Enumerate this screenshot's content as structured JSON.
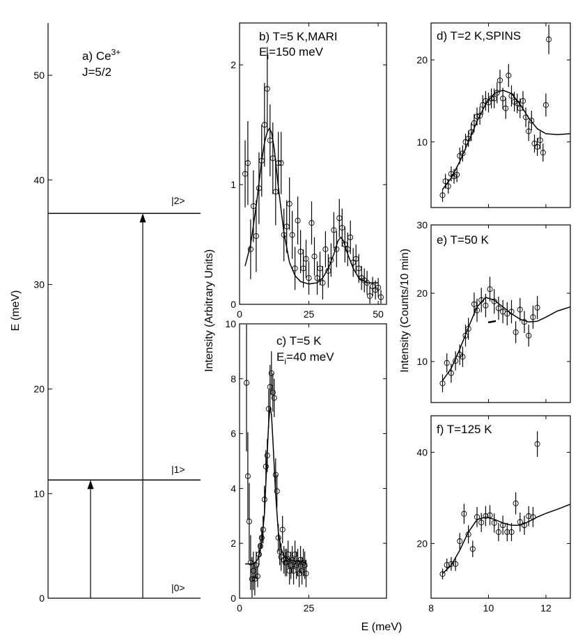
{
  "chart_data": [
    {
      "id": "a",
      "type": "level-diagram",
      "label": "a)",
      "ion": "Ce",
      "ion_sup": "3+",
      "j_label": "J=5/2",
      "ylabel": "E (meV)",
      "ylim": [
        0,
        55
      ],
      "yticks": [
        0,
        10,
        20,
        30,
        40,
        50
      ],
      "levels": [
        {
          "name": "|0>",
          "energy": 0
        },
        {
          "name": "|1>",
          "energy": 11.3
        },
        {
          "name": "|2>",
          "energy": 36.8
        }
      ],
      "transitions": [
        {
          "from": 0,
          "to": 11.3
        },
        {
          "from": 0,
          "to": 36.8
        }
      ]
    },
    {
      "id": "b",
      "type": "scatter",
      "title_pre": "b) T=5 K,MARI",
      "title_line2_pre": "E",
      "title_line2_sub": "i",
      "title_line2_post": "=150 meV",
      "xlim": [
        0,
        53
      ],
      "ylim": [
        0,
        2.35
      ],
      "xticks": [
        0,
        25,
        50
      ],
      "yticks": [
        0,
        1,
        2
      ],
      "points": [
        [
          2,
          1.09,
          0.28
        ],
        [
          3,
          1.18,
          0.35
        ],
        [
          4,
          0.46,
          0.25
        ],
        [
          5,
          0.82,
          0.3
        ],
        [
          6,
          0.57,
          0.3
        ],
        [
          7,
          0.97,
          0.3
        ],
        [
          8,
          1.2,
          0.3
        ],
        [
          9,
          1.5,
          0.35
        ],
        [
          10,
          1.8,
          0.35
        ],
        [
          11,
          1.37,
          0.3
        ],
        [
          12,
          1.22,
          0.3
        ],
        [
          13,
          0.94,
          0.28
        ],
        [
          14,
          1.18,
          0.26
        ],
        [
          15,
          1.18,
          0.26
        ],
        [
          16,
          0.58,
          0.22
        ],
        [
          17,
          0.65,
          0.22
        ],
        [
          18,
          0.84,
          0.22
        ],
        [
          19,
          0.58,
          0.2
        ],
        [
          20,
          0.3,
          0.18
        ],
        [
          21,
          0.7,
          0.2
        ],
        [
          22,
          0.44,
          0.18
        ],
        [
          23,
          0.3,
          0.16
        ],
        [
          24,
          0.38,
          0.16
        ],
        [
          25,
          0.22,
          0.14
        ],
        [
          26,
          0.68,
          0.18
        ],
        [
          27,
          0.4,
          0.16
        ],
        [
          28,
          0.22,
          0.14
        ],
        [
          29,
          0.3,
          0.14
        ],
        [
          30,
          0.18,
          0.14
        ],
        [
          31,
          0.46,
          0.15
        ],
        [
          32,
          0.28,
          0.14
        ],
        [
          33,
          0.37,
          0.14
        ],
        [
          34,
          0.62,
          0.15
        ],
        [
          35,
          0.46,
          0.15
        ],
        [
          36,
          0.72,
          0.16
        ],
        [
          37,
          0.64,
          0.16
        ],
        [
          38,
          0.5,
          0.15
        ],
        [
          39,
          0.46,
          0.14
        ],
        [
          40,
          0.56,
          0.14
        ],
        [
          41,
          0.35,
          0.12
        ],
        [
          42,
          0.38,
          0.12
        ],
        [
          43,
          0.3,
          0.12
        ],
        [
          44,
          0.22,
          0.1
        ],
        [
          45,
          0.2,
          0.1
        ],
        [
          46,
          0.18,
          0.1
        ],
        [
          47,
          0.07,
          0.08
        ],
        [
          48,
          0.15,
          0.08
        ],
        [
          49,
          0.12,
          0.08
        ],
        [
          50,
          0.14,
          0.08
        ],
        [
          51,
          0.06,
          0.06
        ]
      ],
      "fit": [
        [
          2,
          0.32
        ],
        [
          4,
          0.5
        ],
        [
          6,
          0.82
        ],
        [
          8,
          1.2
        ],
        [
          9,
          1.35
        ],
        [
          10,
          1.44
        ],
        [
          10.8,
          1.47
        ],
        [
          11.6,
          1.43
        ],
        [
          12.5,
          1.3
        ],
        [
          14,
          0.98
        ],
        [
          16,
          0.6
        ],
        [
          18,
          0.35
        ],
        [
          20,
          0.24
        ],
        [
          22,
          0.19
        ],
        [
          25,
          0.17
        ],
        [
          28,
          0.18
        ],
        [
          30,
          0.22
        ],
        [
          32,
          0.3
        ],
        [
          34,
          0.42
        ],
        [
          35.5,
          0.53
        ],
        [
          36.5,
          0.56
        ],
        [
          37.5,
          0.53
        ],
        [
          39,
          0.42
        ],
        [
          41,
          0.3
        ],
        [
          43,
          0.22
        ],
        [
          46,
          0.18
        ],
        [
          50,
          0.18
        ]
      ]
    },
    {
      "id": "c",
      "type": "scatter",
      "title_pre": "c) T=5 K",
      "title_line2_pre": "E",
      "title_line2_sub": "i",
      "title_line2_post": "=40 meV",
      "ylabel": "Intensity (Arbitrary Units)",
      "xlim": [
        0,
        53
      ],
      "ylim": [
        0,
        10
      ],
      "xticks": [
        0,
        25
      ],
      "yticks": [
        0,
        2,
        4,
        6,
        8,
        10
      ],
      "points": [
        [
          2.5,
          7.85,
          2.5
        ],
        [
          3,
          4.45,
          1.6
        ],
        [
          3.5,
          2.8,
          1.4
        ],
        [
          4,
          1.3,
          1.0
        ],
        [
          4.5,
          0.7,
          0.8
        ],
        [
          5,
          1.0,
          0.7
        ],
        [
          5.5,
          0.7,
          0.6
        ],
        [
          6,
          1.2,
          0.5
        ],
        [
          6.5,
          0.8,
          0.4
        ],
        [
          7,
          1.6,
          0.4
        ],
        [
          7.5,
          1.9,
          0.4
        ],
        [
          8,
          2.2,
          0.4
        ],
        [
          8.5,
          2.5,
          0.5
        ],
        [
          9,
          3.6,
          0.5
        ],
        [
          9.5,
          4.8,
          0.6
        ],
        [
          10,
          5.2,
          0.6
        ],
        [
          10.5,
          6.9,
          0.7
        ],
        [
          11,
          7.7,
          0.8
        ],
        [
          11.5,
          8.2,
          0.8
        ],
        [
          12,
          7.5,
          0.7
        ],
        [
          12.5,
          7.3,
          0.7
        ],
        [
          13,
          4.5,
          0.6
        ],
        [
          13.5,
          3.9,
          0.6
        ],
        [
          14,
          2.2,
          0.5
        ],
        [
          14.5,
          1.7,
          0.5
        ],
        [
          15,
          1.5,
          0.5
        ],
        [
          15.5,
          2.5,
          0.5
        ],
        [
          16,
          1.4,
          0.5
        ],
        [
          16.5,
          1.3,
          0.5
        ],
        [
          17,
          1.3,
          0.5
        ],
        [
          17.5,
          1.6,
          0.5
        ],
        [
          18,
          1.0,
          0.5
        ],
        [
          18.5,
          1.2,
          0.5
        ],
        [
          19,
          1.4,
          0.5
        ],
        [
          19.5,
          1.0,
          0.5
        ],
        [
          20,
          1.6,
          0.5
        ],
        [
          20.5,
          1.2,
          0.5
        ],
        [
          21,
          1.3,
          0.5
        ],
        [
          21.5,
          0.9,
          0.5
        ],
        [
          22,
          1.4,
          0.5
        ],
        [
          22.5,
          1.0,
          0.5
        ],
        [
          23,
          1.3,
          0.5
        ],
        [
          23.5,
          1.2,
          0.5
        ],
        [
          24,
          0.9,
          0.5
        ]
      ],
      "fit": [
        [
          2,
          1.25
        ],
        [
          5,
          1.25
        ],
        [
          6.5,
          1.4
        ],
        [
          8,
          2.0
        ],
        [
          9,
          3.1
        ],
        [
          10,
          5.3
        ],
        [
          10.5,
          6.4
        ],
        [
          11,
          6.95
        ],
        [
          11.5,
          6.7
        ],
        [
          12,
          5.8
        ],
        [
          13,
          3.8
        ],
        [
          14,
          2.4
        ],
        [
          15,
          1.8
        ],
        [
          16,
          1.55
        ],
        [
          18,
          1.4
        ],
        [
          20,
          1.35
        ],
        [
          24,
          1.3
        ]
      ]
    },
    {
      "id": "d",
      "type": "scatter",
      "title_pre": "d) T=2 K,SPINS",
      "xlim": [
        8,
        12.85
      ],
      "ylim": [
        2,
        24.5
      ],
      "yticks": [
        10,
        20
      ],
      "points": [
        [
          8.4,
          3.5,
          0.8
        ],
        [
          8.5,
          5.2,
          0.9
        ],
        [
          8.6,
          4.6,
          0.9
        ],
        [
          8.7,
          6.1,
          0.9
        ],
        [
          8.8,
          5.8,
          0.9
        ],
        [
          8.9,
          6.0,
          0.9
        ],
        [
          9.0,
          8.3,
          1.0
        ],
        [
          9.1,
          8.6,
          1.0
        ],
        [
          9.2,
          10.0,
          1.0
        ],
        [
          9.3,
          10.4,
          1.0
        ],
        [
          9.4,
          11.2,
          1.1
        ],
        [
          9.5,
          12.3,
          1.1
        ],
        [
          9.6,
          13.1,
          1.1
        ],
        [
          9.7,
          13.2,
          1.1
        ],
        [
          9.8,
          14.5,
          1.2
        ],
        [
          9.9,
          15.0,
          1.2
        ],
        [
          10.0,
          14.8,
          1.2
        ],
        [
          10.1,
          15.3,
          1.2
        ],
        [
          10.2,
          15.3,
          1.2
        ],
        [
          10.3,
          16.0,
          1.3
        ],
        [
          10.4,
          17.5,
          1.3
        ],
        [
          10.5,
          15.3,
          1.3
        ],
        [
          10.6,
          14.1,
          1.3
        ],
        [
          10.7,
          18.1,
          1.4
        ],
        [
          10.8,
          15.6,
          1.3
        ],
        [
          10.9,
          14.9,
          1.2
        ],
        [
          11.0,
          14.7,
          1.2
        ],
        [
          11.1,
          14.1,
          1.2
        ],
        [
          11.2,
          15.0,
          1.2
        ],
        [
          11.3,
          13.0,
          1.2
        ],
        [
          11.4,
          11.3,
          1.2
        ],
        [
          11.5,
          12.6,
          1.2
        ],
        [
          11.6,
          9.8,
          1.1
        ],
        [
          11.7,
          9.4,
          1.1
        ],
        [
          11.8,
          10.2,
          1.1
        ],
        [
          11.9,
          8.7,
          1.1
        ],
        [
          12.0,
          14.5,
          1.4
        ],
        [
          12.1,
          22.5,
          1.8
        ]
      ],
      "fit": [
        [
          8.4,
          4.2
        ],
        [
          8.7,
          5.6
        ],
        [
          9.0,
          7.6
        ],
        [
          9.3,
          10.0
        ],
        [
          9.6,
          12.5
        ],
        [
          9.9,
          14.6
        ],
        [
          10.2,
          15.9
        ],
        [
          10.5,
          16.3
        ],
        [
          10.8,
          15.9
        ],
        [
          11.1,
          14.6
        ],
        [
          11.4,
          12.9
        ],
        [
          11.7,
          11.6
        ],
        [
          12.0,
          11.0
        ],
        [
          12.4,
          10.9
        ],
        [
          12.85,
          11.0
        ]
      ]
    },
    {
      "id": "e",
      "type": "scatter",
      "title_pre": "e) T=50 K",
      "ylabel": "Intensity (Counts/10 min)",
      "xlim": [
        8,
        12.85
      ],
      "ylim": [
        4,
        30
      ],
      "yticks": [
        10,
        20,
        30
      ],
      "points": [
        [
          8.4,
          6.8,
          1.3
        ],
        [
          8.55,
          9.8,
          1.4
        ],
        [
          8.7,
          8.3,
          1.4
        ],
        [
          8.85,
          10.1,
          1.4
        ],
        [
          9.0,
          11.0,
          1.5
        ],
        [
          9.1,
          10.7,
          1.5
        ],
        [
          9.2,
          13.8,
          1.6
        ],
        [
          9.3,
          14.8,
          1.6
        ],
        [
          9.5,
          18.4,
          1.7
        ],
        [
          9.6,
          17.5,
          1.7
        ],
        [
          9.75,
          19.0,
          1.8
        ],
        [
          9.9,
          18.2,
          1.7
        ],
        [
          10.05,
          20.6,
          1.8
        ],
        [
          10.2,
          18.8,
          1.8
        ],
        [
          10.35,
          17.8,
          1.7
        ],
        [
          10.5,
          17.3,
          1.7
        ],
        [
          10.65,
          17.0,
          1.7
        ],
        [
          10.8,
          17.3,
          1.7
        ],
        [
          10.95,
          14.3,
          1.6
        ],
        [
          11.1,
          17.6,
          1.7
        ],
        [
          11.25,
          15.8,
          1.6
        ],
        [
          11.4,
          13.8,
          1.6
        ],
        [
          11.55,
          16.5,
          1.7
        ],
        [
          11.7,
          17.9,
          1.7
        ]
      ],
      "fit": [
        [
          8.4,
          7.2
        ],
        [
          8.7,
          9.0
        ],
        [
          9.0,
          11.8
        ],
        [
          9.3,
          15.0
        ],
        [
          9.6,
          18.0
        ],
        [
          9.9,
          19.4
        ],
        [
          10.2,
          19.0
        ],
        [
          10.5,
          18.0
        ],
        [
          10.8,
          17.0
        ],
        [
          11.1,
          16.2
        ],
        [
          11.4,
          15.8
        ],
        [
          11.7,
          15.9
        ],
        [
          12.0,
          16.5
        ],
        [
          12.4,
          17.4
        ],
        [
          12.85,
          18.0
        ]
      ]
    },
    {
      "id": "f",
      "type": "scatter",
      "title_pre": "f) T=125 K",
      "xlabel": "E (meV)",
      "xlim": [
        8,
        12.85
      ],
      "ylim": [
        8,
        48
      ],
      "xticks": [
        8,
        10,
        12
      ],
      "yticks": [
        20,
        40
      ],
      "points": [
        [
          8.4,
          13.3,
          1.2
        ],
        [
          8.55,
          15.3,
          1.4
        ],
        [
          8.7,
          15.5,
          1.5
        ],
        [
          8.85,
          15.5,
          1.5
        ],
        [
          9.0,
          20.5,
          1.8
        ],
        [
          9.15,
          26.5,
          2.2
        ],
        [
          9.3,
          22.0,
          2.0
        ],
        [
          9.45,
          18.8,
          1.8
        ],
        [
          9.6,
          25.8,
          2.2
        ],
        [
          9.75,
          24.6,
          2.1
        ],
        [
          9.9,
          26.0,
          2.2
        ],
        [
          10.05,
          26.2,
          2.2
        ],
        [
          10.2,
          24.5,
          2.1
        ],
        [
          10.35,
          22.5,
          2.0
        ],
        [
          10.5,
          24.0,
          2.1
        ],
        [
          10.65,
          22.5,
          2.0
        ],
        [
          10.8,
          22.5,
          2.0
        ],
        [
          10.95,
          28.8,
          2.4
        ],
        [
          11.1,
          24.7,
          2.1
        ],
        [
          11.25,
          24.0,
          2.1
        ],
        [
          11.4,
          26.0,
          2.2
        ],
        [
          11.55,
          25.8,
          2.2
        ],
        [
          11.7,
          41.8,
          2.8
        ]
      ],
      "fit": [
        [
          8.4,
          13.4
        ],
        [
          8.7,
          15.2
        ],
        [
          9.0,
          18.5
        ],
        [
          9.3,
          22.5
        ],
        [
          9.6,
          25.2
        ],
        [
          9.9,
          25.8
        ],
        [
          10.2,
          25.3
        ],
        [
          10.5,
          24.5
        ],
        [
          10.8,
          24.0
        ],
        [
          11.1,
          24.0
        ],
        [
          11.4,
          24.8
        ],
        [
          11.7,
          25.8
        ],
        [
          12.0,
          26.6
        ],
        [
          12.4,
          27.5
        ],
        [
          12.85,
          28.6
        ]
      ]
    }
  ],
  "labels": {
    "panel_a_label": "a) Ce",
    "panel_a_sup": "3+",
    "panel_a_j": "J=5/2",
    "panel_a_ylabel": "E (meV)",
    "mid_ylabel": "Intensity (Arbitrary Units)",
    "right_ylabel": "Intensity (Counts/10 min)",
    "xlabel": "E (meV)",
    "level0": "|0>",
    "level1": "|1>",
    "level2": "|2>"
  }
}
